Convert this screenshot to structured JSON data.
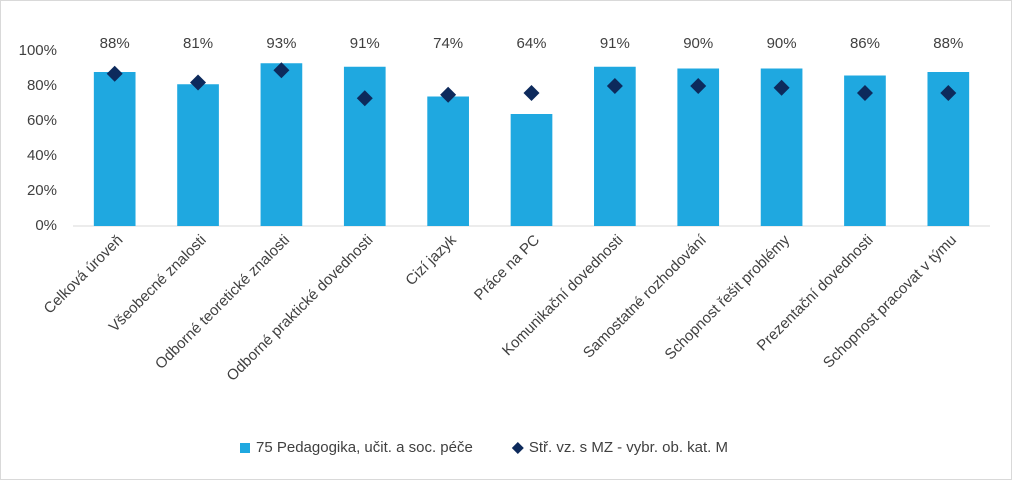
{
  "chart_data": {
    "type": "bar",
    "categories": [
      "Celková úroveň",
      "Všeobecné znalosti",
      "Odborné teoretické znalosti",
      "Odborné praktické dovednosti",
      "Cizí jazyk",
      "Práce na PC",
      "Komunikační dovednosti",
      "Samostatné rozhodování",
      "Schopnost řešit problémy",
      "Prezentační dovednosti",
      "Schopnost pracovat v týmu"
    ],
    "series": [
      {
        "name": "75 Pedagogika, učit. a soc. péče",
        "color": "#1fa8e0",
        "values": [
          88,
          81,
          93,
          91,
          74,
          64,
          91,
          90,
          90,
          86,
          88
        ],
        "value_labels": [
          "88%",
          "81%",
          "93%",
          "91%",
          "74%",
          "64%",
          "91%",
          "90%",
          "90%",
          "86%",
          "88%"
        ]
      },
      {
        "name": "Stř. vz. s MZ - vybr. ob. kat. M",
        "color": "#0d2a5c",
        "marker": "diamond",
        "values": [
          87,
          82,
          89,
          73,
          75,
          76,
          80,
          80,
          79,
          76,
          76
        ]
      }
    ],
    "ylim": [
      0,
      100
    ],
    "yticks": [
      {
        "value": 0,
        "label": "0%"
      },
      {
        "value": 20,
        "label": "20%"
      },
      {
        "value": 40,
        "label": "40%"
      },
      {
        "value": 60,
        "label": "60%"
      },
      {
        "value": 80,
        "label": "80%"
      },
      {
        "value": 100,
        "label": "100%"
      }
    ],
    "grid": false,
    "legend": "bottom"
  }
}
